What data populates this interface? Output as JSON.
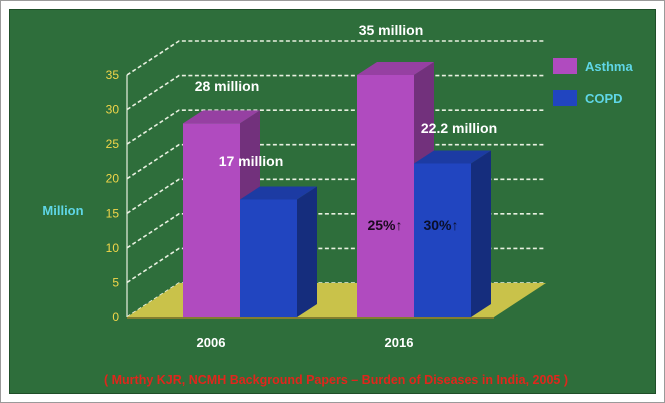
{
  "chart_data": {
    "type": "bar",
    "categories": [
      "2006",
      "2016"
    ],
    "series": [
      {
        "name": "Asthma",
        "values": [
          28,
          35
        ],
        "value_labels": [
          "28 million",
          "35 million"
        ],
        "color": "#b04bbf"
      },
      {
        "name": "COPD",
        "values": [
          17,
          22.2
        ],
        "value_labels": [
          "17 million",
          "22.2 million"
        ],
        "color": "#2145c0"
      }
    ],
    "annotations": [
      "25%↑",
      "30%↑"
    ],
    "ylabel": "Million",
    "ylim": [
      0,
      35
    ],
    "yticks": [
      0,
      5,
      10,
      15,
      20,
      25,
      30,
      35
    ],
    "grid": true,
    "legend": "top-right",
    "style": "3d",
    "source": "( Murthy KJR, NCMH Background Papers – Burden of Diseases in India, 2005 )",
    "colors": {
      "background": "#2e6e3b",
      "floor": "#c9c24a",
      "axis_text": "#f2d64a",
      "ylabel": "#5fd6e6",
      "source": "#e0261c",
      "label": "#ffffff"
    }
  }
}
